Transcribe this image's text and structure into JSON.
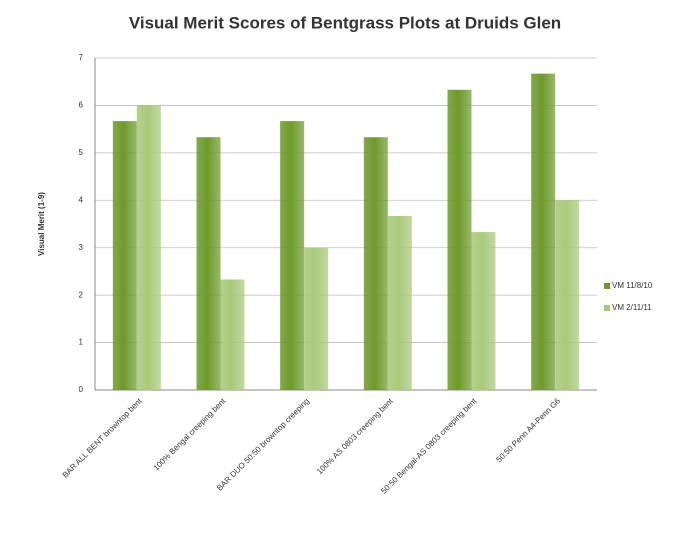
{
  "chart_data": {
    "type": "bar",
    "title": "Visual Merit Scores of Bentgrass Plots at Druids Glen",
    "y_label": "Visual Merit (1-9)",
    "categories": [
      "BAR ALL BENT browntop bent",
      "100% Bengal creeping bent",
      "BAR DUO 50:50 browntop creeping",
      "100% AS 0803 creeping bent",
      "50:50 Bengal-AS 0803 creeping bent",
      "50:50 Penn A4-Penn G6"
    ],
    "series": [
      {
        "name": "VM 11/8/10",
        "color": "#6e9a2c",
        "values": [
          5.67,
          5.33,
          5.67,
          5.33,
          6.33,
          6.67
        ]
      },
      {
        "name": "VM 2/11/11",
        "color": "#a9c97a",
        "values": [
          6.0,
          2.33,
          3.0,
          3.67,
          3.33,
          4.0
        ]
      }
    ],
    "ylim": [
      0,
      7
    ],
    "yticks": [
      0,
      1,
      2,
      3,
      4,
      5,
      6,
      7
    ],
    "grid": true,
    "legend": "right"
  }
}
